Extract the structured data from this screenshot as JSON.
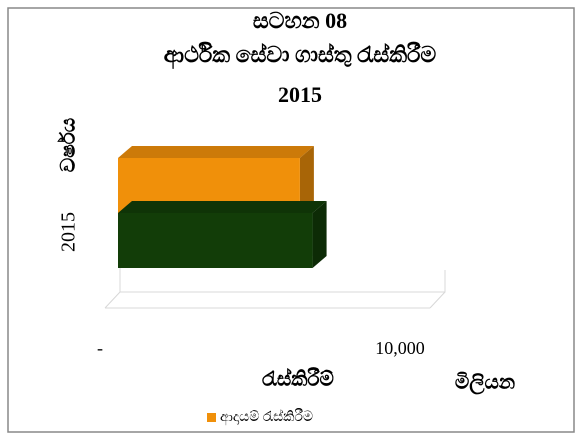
{
  "chart_data": {
    "type": "bar3d_horizontal",
    "title": [
      "සටහන 08",
      "ආර්ථික සේවා ගාස්තු රැස්කිරීම",
      "2015"
    ],
    "categories": [
      "2015"
    ],
    "series": [
      {
        "name": "ආදායම් රැස්කිරීම",
        "color": "#f0900a",
        "values": [
          6450
        ]
      },
      {
        "name": null,
        "color": "#123d08",
        "values": [
          6900
        ]
      }
    ],
    "y_axis_label": "වර්ෂය",
    "x_axis_label": "රැස්කිරීම්",
    "x_unit_label": "මිලියන",
    "xlim": [
      0,
      10000
    ],
    "xticks": [
      {
        "value": 0,
        "label": "-"
      },
      {
        "value": 10000,
        "label": "10,000"
      }
    ],
    "legend": "bottom"
  }
}
